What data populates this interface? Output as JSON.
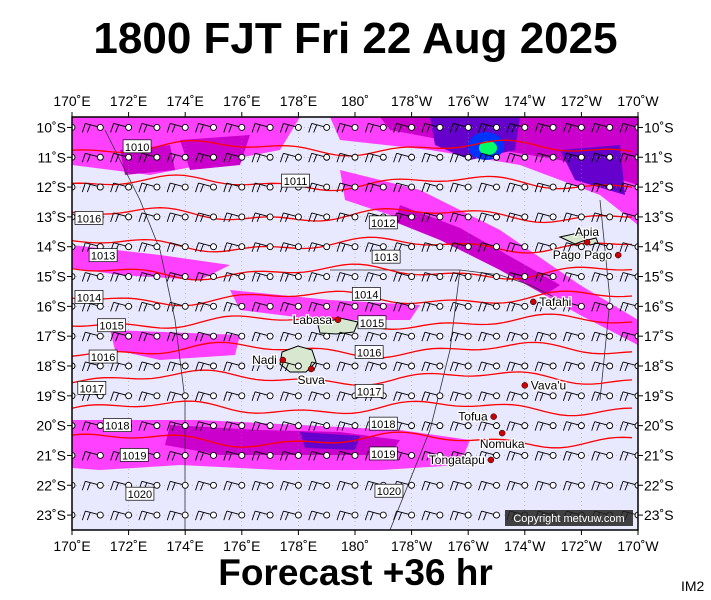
{
  "title": "1800 FJT Fri 22 Aug 2025",
  "footer": "Forecast +36 hr",
  "product_code": "IM2",
  "copyright": "Copyright metvuw.com",
  "lon_labels": [
    "170˚E",
    "172˚E",
    "174˚E",
    "176˚E",
    "178˚E",
    "180˚",
    "178˚W",
    "176˚W",
    "174˚W",
    "172˚W",
    "170˚W"
  ],
  "lat_labels": [
    "10˚S",
    "11˚S",
    "12˚S",
    "13˚S",
    "14˚S",
    "15˚S",
    "16˚S",
    "17˚S",
    "18˚S",
    "19˚S",
    "20˚S",
    "21˚S",
    "22˚S",
    "23˚S"
  ],
  "isobars": [
    {
      "label": "1010",
      "value": 1010
    },
    {
      "label": "1011",
      "value": 1011
    },
    {
      "label": "1012",
      "value": 1012
    },
    {
      "label": "1013",
      "value": 1013
    },
    {
      "label": "1014",
      "value": 1014
    },
    {
      "label": "1015",
      "value": 1015
    },
    {
      "label": "1016",
      "value": 1016
    },
    {
      "label": "1017",
      "value": 1017
    },
    {
      "label": "1018",
      "value": 1018
    },
    {
      "label": "1019",
      "value": 1019
    },
    {
      "label": "1020",
      "value": 1020
    }
  ],
  "isobar_labels": [
    {
      "text": "1010",
      "lon": 172.3,
      "lat": -10.65
    },
    {
      "text": "1011",
      "lon": 177.9,
      "lat": -11.8
    },
    {
      "text": "1016",
      "lon": 170.6,
      "lat": -13.05
    },
    {
      "text": "1012",
      "lon": -179.0,
      "lat": -13.2
    },
    {
      "text": "1013",
      "lon": 171.1,
      "lat": -14.3
    },
    {
      "text": "1013",
      "lon": -178.9,
      "lat": -14.35
    },
    {
      "text": "1014",
      "lon": 170.6,
      "lat": -15.7
    },
    {
      "text": "1014",
      "lon": -179.6,
      "lat": -15.6
    },
    {
      "text": "1015",
      "lon": 171.4,
      "lat": -16.65
    },
    {
      "text": "1015",
      "lon": -179.4,
      "lat": -16.55
    },
    {
      "text": "1016",
      "lon": 171.1,
      "lat": -17.7
    },
    {
      "text": "1016",
      "lon": -179.5,
      "lat": -17.55
    },
    {
      "text": "1017",
      "lon": 170.7,
      "lat": -18.75
    },
    {
      "text": "1017",
      "lon": -179.5,
      "lat": -18.85
    },
    {
      "text": "1018",
      "lon": 171.6,
      "lat": -20.0
    },
    {
      "text": "1018",
      "lon": -179.0,
      "lat": -19.95
    },
    {
      "text": "1019",
      "lon": 172.2,
      "lat": -21.0
    },
    {
      "text": "1019",
      "lon": -179.0,
      "lat": -20.95
    },
    {
      "text": "1020",
      "lon": 172.4,
      "lat": -22.3
    },
    {
      "text": "1020",
      "lon": -178.8,
      "lat": -22.2
    }
  ],
  "places": [
    {
      "name": "Apia",
      "lon": -171.8,
      "lat": -13.85,
      "label_side": "top"
    },
    {
      "name": "Pago Pago",
      "lon": -170.7,
      "lat": -14.28,
      "label_side": "left"
    },
    {
      "name": "Tafahi",
      "lon": -173.7,
      "lat": -15.85,
      "label_side": "right"
    },
    {
      "name": "Labasa",
      "lon": 179.4,
      "lat": -16.45,
      "label_side": "left"
    },
    {
      "name": "Nadi",
      "lon": 177.45,
      "lat": -17.8,
      "label_side": "left"
    },
    {
      "name": "Suva",
      "lon": 178.45,
      "lat": -18.1,
      "label_side": "below"
    },
    {
      "name": "Vava'u",
      "lon": -174.0,
      "lat": -18.65,
      "label_side": "right"
    },
    {
      "name": "Tofua",
      "lon": -175.1,
      "lat": -19.7,
      "label_side": "left"
    },
    {
      "name": "Nomuka",
      "lon": -174.8,
      "lat": -20.25,
      "label_side": "below"
    },
    {
      "name": "Tongatapu",
      "lon": -175.2,
      "lat": -21.15,
      "label_side": "left"
    }
  ],
  "colors": {
    "sea": "#e8e8ff",
    "isobar": "#ff0000",
    "grid": "#9090a0",
    "precip_light": "#ff40ff",
    "precip_mid": "#cc00cc",
    "precip_heavy": "#6600cc",
    "precip_extreme": "#0033ff",
    "precip_peak": "#00ff66",
    "wind": "#000000"
  },
  "wind": {
    "direction": "easterly to south-easterly",
    "speed_kt": 15
  }
}
